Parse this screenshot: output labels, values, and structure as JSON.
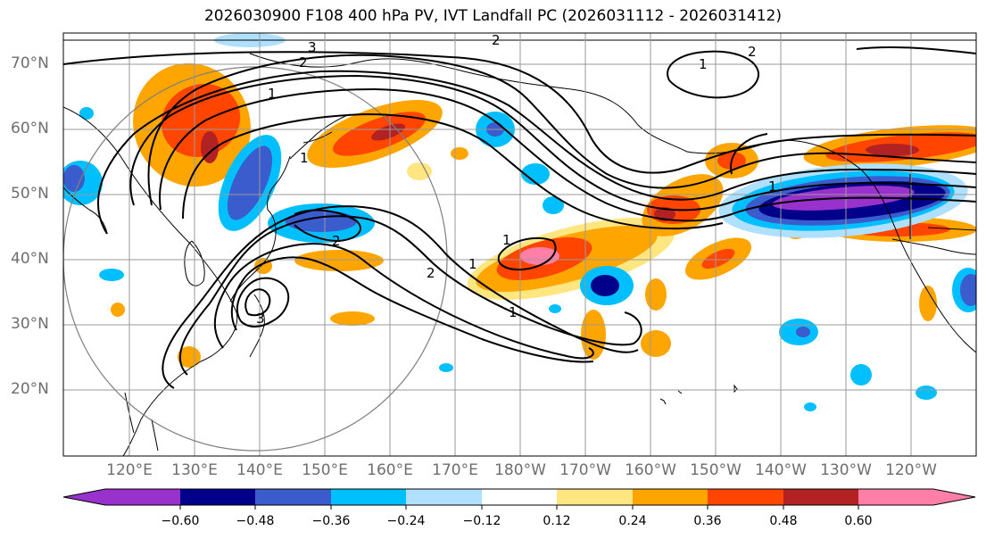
{
  "title": "2026030900 F108 400 hPa PV, IVT Landfall PC (2026031112 - 2026031412)",
  "map": {
    "lat_labels": [
      "70°N",
      "60°N",
      "50°N",
      "40°N",
      "30°N",
      "20°N"
    ],
    "lon_labels": [
      "120°E",
      "130°E",
      "140°E",
      "150°E",
      "160°E",
      "170°E",
      "180°W",
      "170°W",
      "160°W",
      "150°W",
      "140°W",
      "130°W",
      "120°W"
    ],
    "contour_labels": [
      "3",
      "2",
      "1",
      "2",
      "1",
      "1",
      "2",
      "1",
      "2",
      "1",
      "1",
      "3",
      "2",
      "1"
    ]
  },
  "colorbar": {
    "tick_labels": [
      "−0.60",
      "−0.48",
      "−0.36",
      "−0.24",
      "−0.12",
      "0.12",
      "0.24",
      "0.36",
      "0.48",
      "0.60"
    ],
    "colors": [
      "#9932cc",
      "#00008b",
      "#3a5ccc",
      "#00bfff",
      "#b0e0ff",
      "#ffffff",
      "#ffe680",
      "#ffa500",
      "#ff4500",
      "#b22222",
      "#ff7fa8"
    ]
  }
}
